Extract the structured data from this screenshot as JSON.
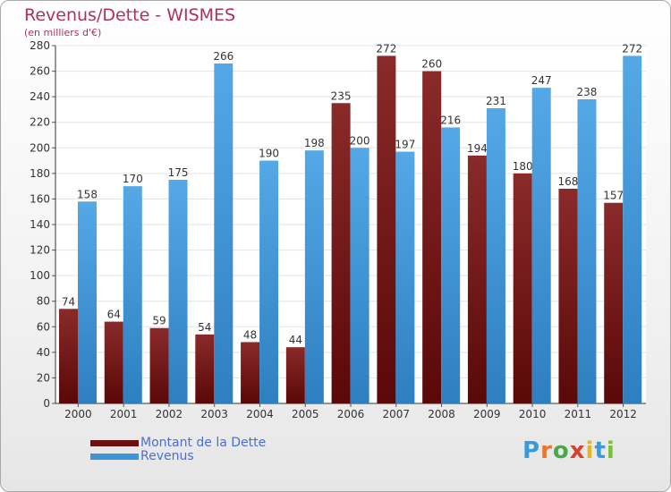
{
  "header": {
    "title": "Revenus/Dette - WISMES",
    "subtitle": "(en milliers d'€)"
  },
  "logo": {
    "letters": [
      "P",
      "r",
      "o",
      "x",
      "i",
      "t",
      "i"
    ],
    "colors": [
      "#3a9ad9",
      "#e9742d",
      "#4aa84a",
      "#d9412f",
      "#e0b820",
      "#3a9ad9",
      "#7abf3a"
    ]
  },
  "chart_data": {
    "type": "bar",
    "categories": [
      "2000",
      "2001",
      "2002",
      "2003",
      "2004",
      "2005",
      "2006",
      "2007",
      "2008",
      "2009",
      "2010",
      "2011",
      "2012"
    ],
    "series": [
      {
        "name": "Montant de la Dette",
        "color": "#7a1a1a",
        "values": [
          74,
          64,
          59,
          54,
          48,
          44,
          235,
          272,
          260,
          194,
          180,
          168,
          157
        ]
      },
      {
        "name": "Revenus",
        "color": "#3d94d6",
        "values": [
          158,
          170,
          175,
          266,
          190,
          198,
          200,
          197,
          216,
          231,
          247,
          238,
          272
        ]
      }
    ],
    "ylim": [
      0,
      280
    ],
    "yticks": [
      "0",
      "20",
      "40",
      "60",
      "80",
      "100",
      "120",
      "140",
      "160",
      "180",
      "200",
      "220",
      "240",
      "260",
      "280"
    ],
    "grid": true,
    "legend_position": "bottom-left"
  }
}
